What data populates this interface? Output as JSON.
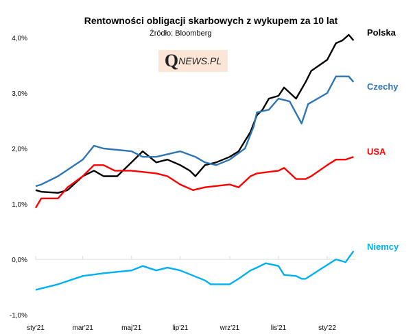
{
  "chart_data": {
    "type": "line",
    "title": "Rentowności obligacji  skarbowych  z wykupem za 10 lat",
    "subtitle": "Źródło: Bloomberg",
    "logo_text": "QNEWS.PL",
    "xlabel": "",
    "ylabel": "",
    "ylim": [
      -1.0,
      4.0
    ],
    "yticks": [
      "-1,0%",
      "0,0%",
      "1,0%",
      "2,0%",
      "3,0%",
      "4,0%"
    ],
    "ytick_values": [
      -1,
      0,
      1,
      2,
      3,
      4
    ],
    "xticks": [
      "sty'21",
      "mar'21",
      "maj'21",
      "lip'21",
      "wrz'21",
      "lis'21",
      "sty'22"
    ],
    "xtick_dates": [
      "2021-01-01",
      "2021-03-01",
      "2021-05-01",
      "2021-07-01",
      "2021-09-01",
      "2021-11-01",
      "2022-01-01"
    ],
    "grid": false,
    "legend": "direct labels at right end",
    "series": [
      {
        "name": "Polska",
        "color": "#000000",
        "points": [
          [
            "2021-01-01",
            1.25
          ],
          [
            "2021-01-08",
            1.22
          ],
          [
            "2021-01-29",
            1.2
          ],
          [
            "2021-02-10",
            1.25
          ],
          [
            "2021-03-01",
            1.5
          ],
          [
            "2021-03-15",
            1.6
          ],
          [
            "2021-03-27",
            1.5
          ],
          [
            "2021-04-13",
            1.5
          ],
          [
            "2021-05-01",
            1.75
          ],
          [
            "2021-05-15",
            1.95
          ],
          [
            "2021-06-01",
            1.75
          ],
          [
            "2021-06-15",
            1.8
          ],
          [
            "2021-07-01",
            1.7
          ],
          [
            "2021-07-13",
            1.6
          ],
          [
            "2021-07-20",
            1.5
          ],
          [
            "2021-08-01",
            1.7
          ],
          [
            "2021-08-15",
            1.75
          ],
          [
            "2021-09-01",
            1.85
          ],
          [
            "2021-09-12",
            1.95
          ],
          [
            "2021-09-27",
            2.3
          ],
          [
            "2021-10-05",
            2.6
          ],
          [
            "2021-10-12",
            2.7
          ],
          [
            "2021-10-20",
            2.9
          ],
          [
            "2021-11-01",
            2.95
          ],
          [
            "2021-11-08",
            3.1
          ],
          [
            "2021-11-23",
            2.9
          ],
          [
            "2021-12-05",
            3.2
          ],
          [
            "2021-12-12",
            3.4
          ],
          [
            "2022-01-01",
            3.6
          ],
          [
            "2022-01-12",
            3.9
          ],
          [
            "2022-01-20",
            3.95
          ],
          [
            "2022-01-28",
            4.05
          ],
          [
            "2022-02-03",
            3.95
          ]
        ]
      },
      {
        "name": "Czechy",
        "color": "#2e75b6",
        "points": [
          [
            "2021-01-01",
            1.32
          ],
          [
            "2021-01-08",
            1.35
          ],
          [
            "2021-01-29",
            1.5
          ],
          [
            "2021-03-01",
            1.8
          ],
          [
            "2021-03-15",
            2.05
          ],
          [
            "2021-03-27",
            2.0
          ],
          [
            "2021-05-01",
            1.95
          ],
          [
            "2021-05-15",
            1.85
          ],
          [
            "2021-06-01",
            1.85
          ],
          [
            "2021-07-01",
            1.95
          ],
          [
            "2021-07-20",
            1.85
          ],
          [
            "2021-08-01",
            1.75
          ],
          [
            "2021-08-15",
            1.7
          ],
          [
            "2021-09-01",
            1.8
          ],
          [
            "2021-09-20",
            2.0
          ],
          [
            "2021-10-01",
            2.4
          ],
          [
            "2021-10-05",
            2.65
          ],
          [
            "2021-10-20",
            2.7
          ],
          [
            "2021-11-01",
            2.9
          ],
          [
            "2021-11-15",
            2.85
          ],
          [
            "2021-11-30",
            2.45
          ],
          [
            "2021-12-08",
            2.8
          ],
          [
            "2022-01-01",
            3.0
          ],
          [
            "2022-01-12",
            3.3
          ],
          [
            "2022-01-28",
            3.3
          ],
          [
            "2022-02-03",
            3.2
          ]
        ]
      },
      {
        "name": "USA",
        "color": "#ff0000",
        "points": [
          [
            "2021-01-01",
            0.93
          ],
          [
            "2021-01-08",
            1.1
          ],
          [
            "2021-01-29",
            1.1
          ],
          [
            "2021-02-10",
            1.3
          ],
          [
            "2021-03-01",
            1.5
          ],
          [
            "2021-03-15",
            1.7
          ],
          [
            "2021-03-27",
            1.7
          ],
          [
            "2021-04-10",
            1.6
          ],
          [
            "2021-05-01",
            1.6
          ],
          [
            "2021-06-01",
            1.55
          ],
          [
            "2021-06-15",
            1.5
          ],
          [
            "2021-07-01",
            1.35
          ],
          [
            "2021-07-17",
            1.25
          ],
          [
            "2021-08-01",
            1.3
          ],
          [
            "2021-09-01",
            1.35
          ],
          [
            "2021-09-12",
            1.3
          ],
          [
            "2021-09-27",
            1.5
          ],
          [
            "2021-10-05",
            1.55
          ],
          [
            "2021-11-01",
            1.6
          ],
          [
            "2021-11-08",
            1.65
          ],
          [
            "2021-11-23",
            1.45
          ],
          [
            "2021-12-05",
            1.45
          ],
          [
            "2021-12-12",
            1.5
          ],
          [
            "2022-01-01",
            1.7
          ],
          [
            "2022-01-12",
            1.8
          ],
          [
            "2022-01-24",
            1.8
          ],
          [
            "2022-02-03",
            1.85
          ]
        ]
      },
      {
        "name": "Niemcy",
        "color": "#00b0f0",
        "points": [
          [
            "2021-01-01",
            -0.55
          ],
          [
            "2021-01-29",
            -0.45
          ],
          [
            "2021-03-01",
            -0.3
          ],
          [
            "2021-03-27",
            -0.25
          ],
          [
            "2021-05-01",
            -0.2
          ],
          [
            "2021-05-15",
            -0.12
          ],
          [
            "2021-06-01",
            -0.2
          ],
          [
            "2021-06-15",
            -0.15
          ],
          [
            "2021-07-01",
            -0.2
          ],
          [
            "2021-08-01",
            -0.38
          ],
          [
            "2021-08-08",
            -0.45
          ],
          [
            "2021-09-01",
            -0.45
          ],
          [
            "2021-09-12",
            -0.35
          ],
          [
            "2021-09-27",
            -0.2
          ],
          [
            "2021-10-05",
            -0.15
          ],
          [
            "2021-10-16",
            -0.07
          ],
          [
            "2021-11-01",
            -0.12
          ],
          [
            "2021-11-08",
            -0.28
          ],
          [
            "2021-11-23",
            -0.3
          ],
          [
            "2021-11-30",
            -0.35
          ],
          [
            "2021-12-05",
            -0.35
          ],
          [
            "2022-01-01",
            -0.1
          ],
          [
            "2022-01-12",
            0.0
          ],
          [
            "2022-01-24",
            -0.05
          ],
          [
            "2022-02-03",
            0.15
          ]
        ]
      }
    ]
  }
}
